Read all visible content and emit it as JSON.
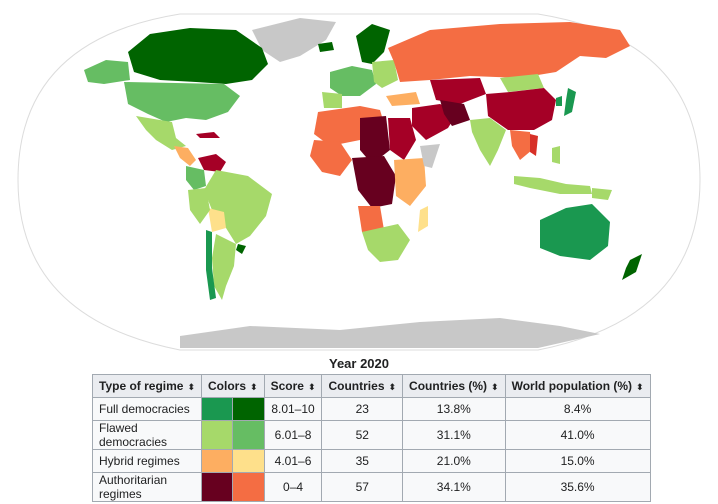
{
  "colors": {
    "full_1": "#1a9850",
    "full_2": "#006400",
    "flawed_1": "#a6d96a",
    "flawed_2": "#66bd63",
    "hybrid_1": "#fdae61",
    "hybrid_2": "#fee08b",
    "auth_1": "#67001f",
    "auth_2": "#f46d43",
    "auth_mid": "#a50026",
    "auth_red": "#d73027",
    "no_data": "#c8c8c8",
    "ocean": "#ffffff",
    "border_outline": "#d8d8d8"
  },
  "table": {
    "caption": "Year 2020",
    "headers": [
      "Type of regime",
      "Colors",
      "Score",
      "Countries",
      "Countries (%)",
      "World population (%)"
    ],
    "sort_icon": "⬍",
    "rows": [
      {
        "type": "Full democracies",
        "score": "8.01–10",
        "countries": "23",
        "countries_pct": "13.8%",
        "population_pct": "8.4%",
        "swatches": [
          "#1a9850",
          "#006400"
        ]
      },
      {
        "type": "Flawed democracies",
        "score": "6.01–8",
        "countries": "52",
        "countries_pct": "31.1%",
        "population_pct": "41.0%",
        "swatches": [
          "#a6d96a",
          "#66bd63"
        ]
      },
      {
        "type": "Hybrid regimes",
        "score": "4.01–6",
        "countries": "35",
        "countries_pct": "21.0%",
        "population_pct": "15.0%",
        "swatches": [
          "#fdae61",
          "#fee08b"
        ]
      },
      {
        "type": "Authoritarian regimes",
        "score": "0–4",
        "countries": "57",
        "countries_pct": "34.1%",
        "population_pct": "35.6%",
        "swatches": [
          "#67001f",
          "#f46d43"
        ]
      }
    ]
  }
}
